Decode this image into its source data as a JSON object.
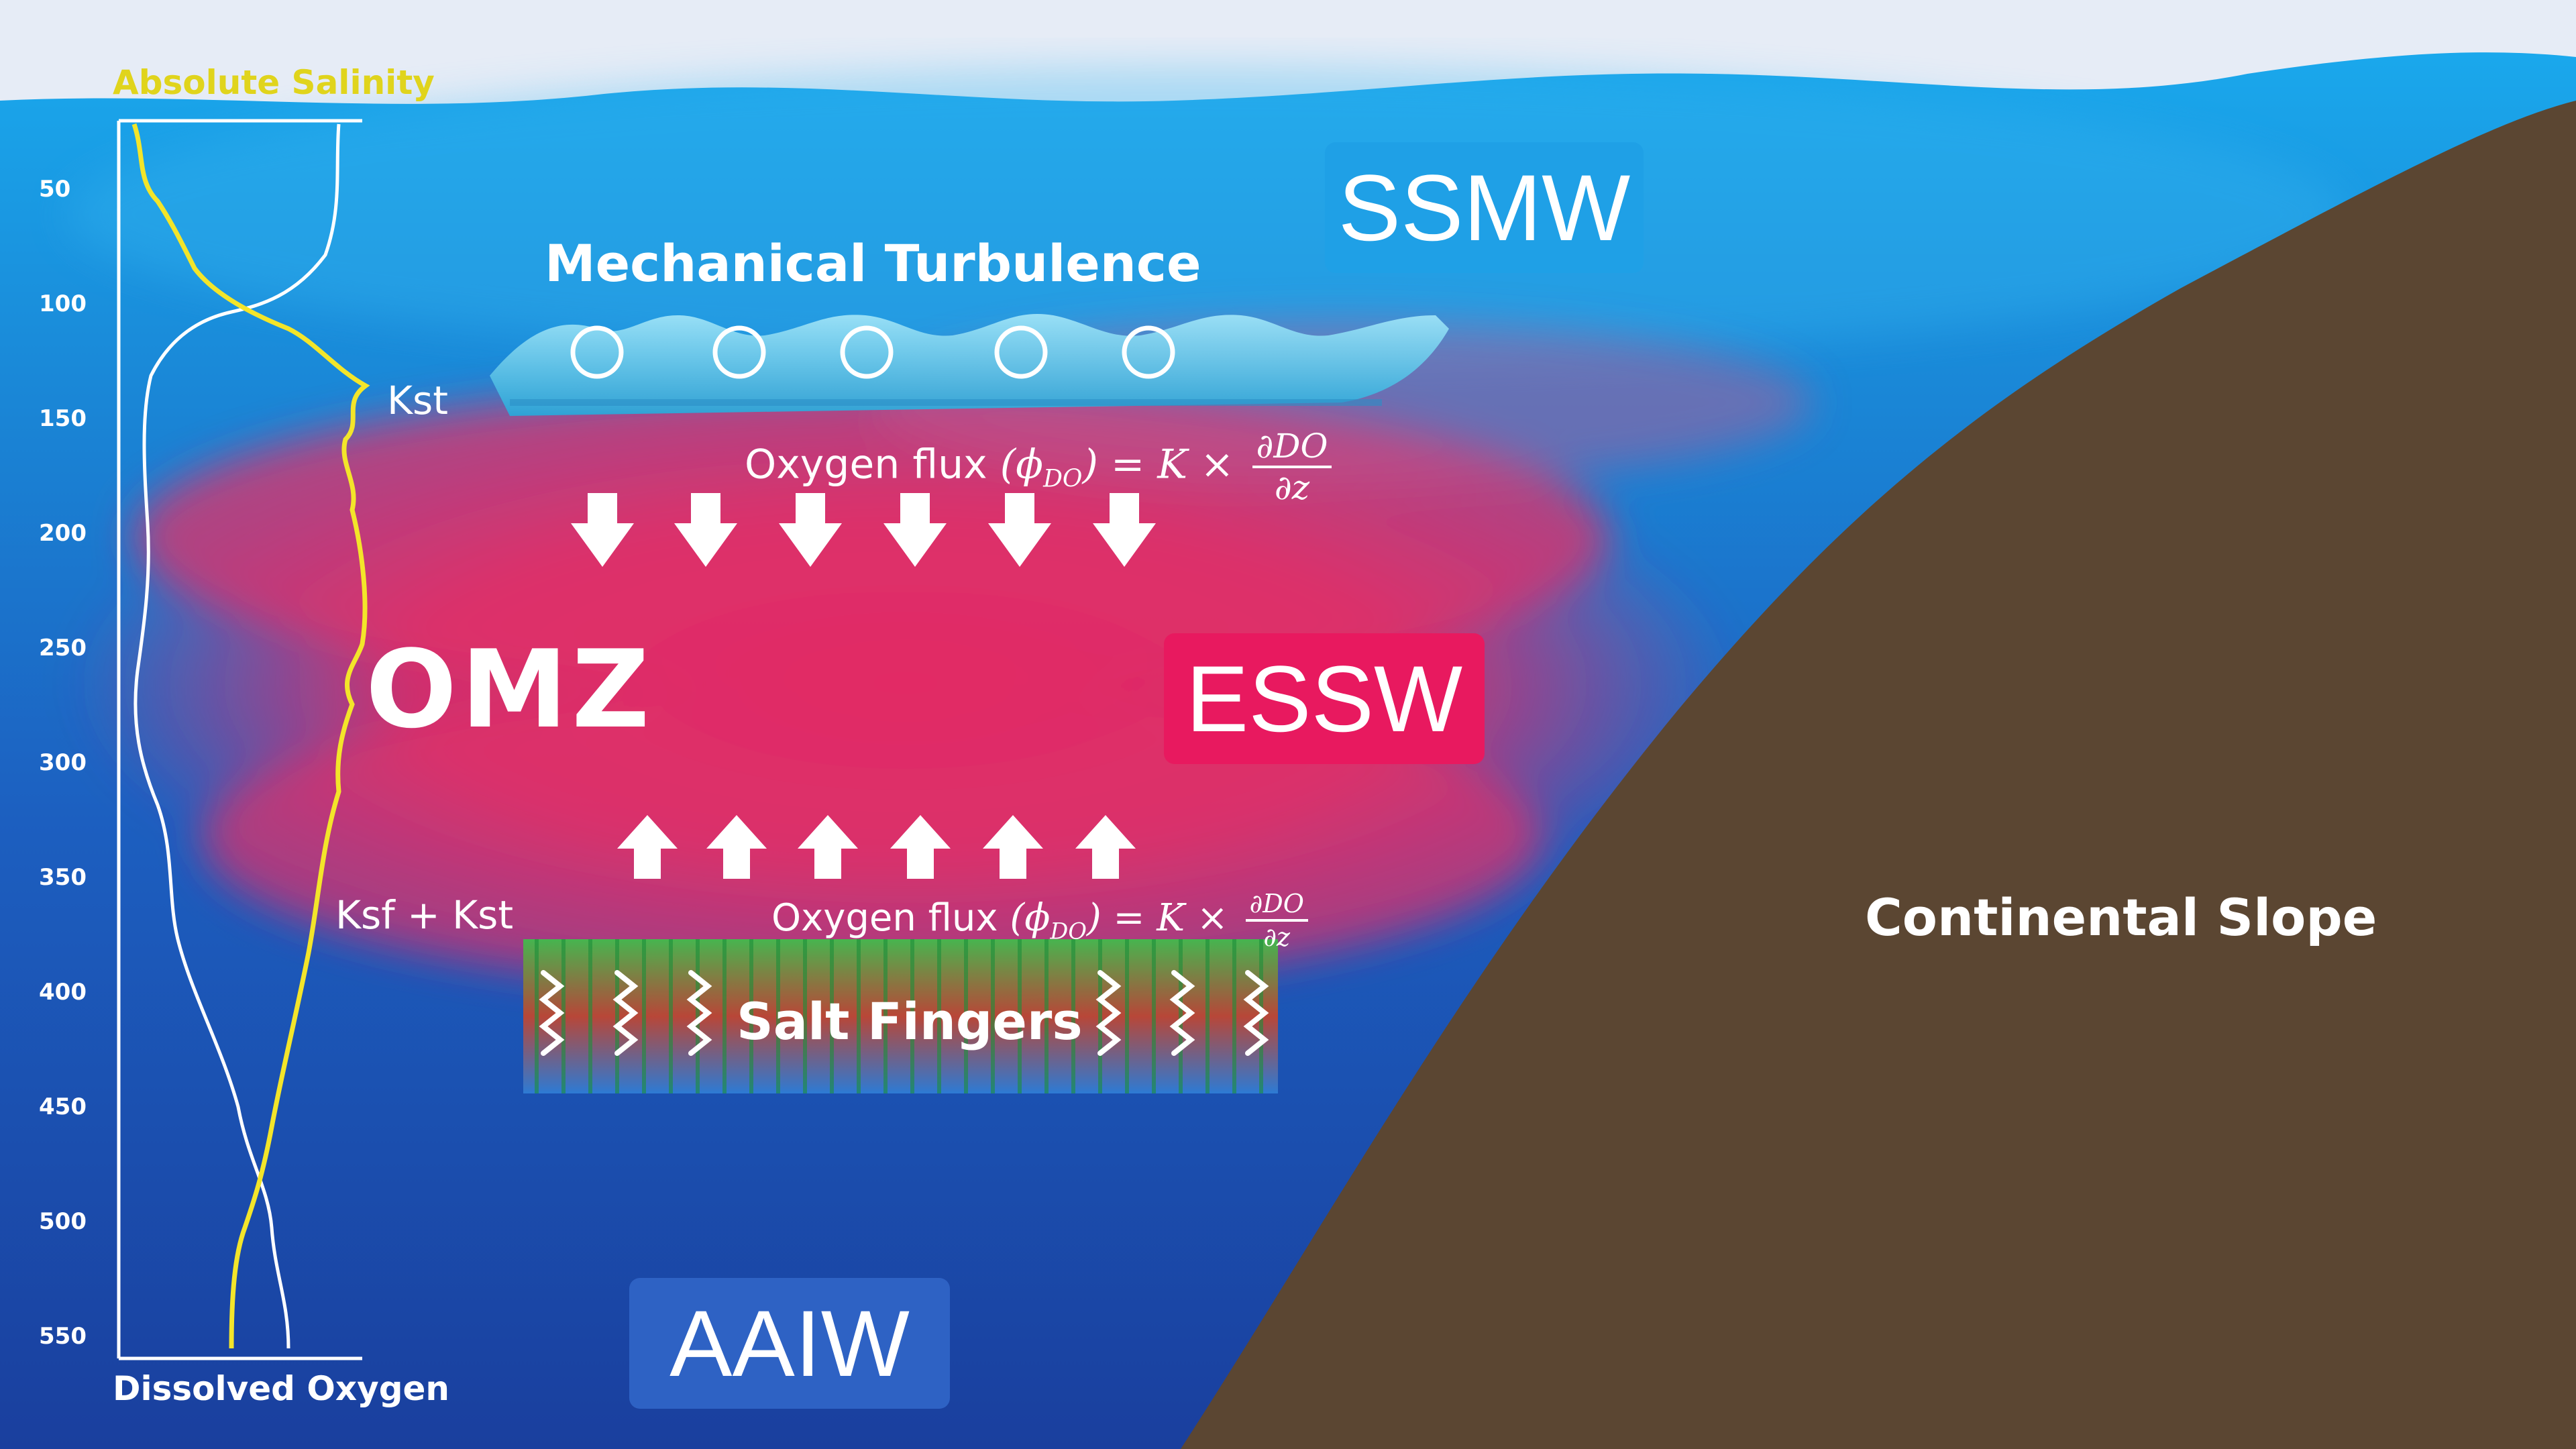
{
  "profile_axis": {
    "top_label": "Absolute Salinity",
    "bottom_label": "Dissolved Oxygen",
    "depth_ticks": [
      "50",
      "100",
      "150",
      "200",
      "250",
      "300",
      "350",
      "400",
      "450",
      "500",
      "550"
    ]
  },
  "processes": {
    "turbulence": "Mechanical Turbulence",
    "kst": "Kst",
    "ksf_kst": "Ksf + Kst",
    "salt_fingers": "Salt Fingers"
  },
  "flux_equation": {
    "prefix": "Oxygen flux",
    "symbol": "(ϕ",
    "subscript": "DO",
    "close": ")",
    "equals": " = K × ",
    "numerator": "∂DO",
    "denominator": "∂z"
  },
  "zone_label": "OMZ",
  "water_masses": {
    "ssmw": "SSMW",
    "essw": "ESSW",
    "aaiw": "AAIW"
  },
  "terrain_label": "Continental Slope",
  "colors": {
    "sky": "#e6ecf6",
    "ocean_surface": "#1aa8ec",
    "ocean_deep": "#1a3f9e",
    "omz": "#e3245f",
    "slope": "#5b4632",
    "salinity_line": "#f3e52a",
    "oxygen_line": "#ffffff"
  }
}
